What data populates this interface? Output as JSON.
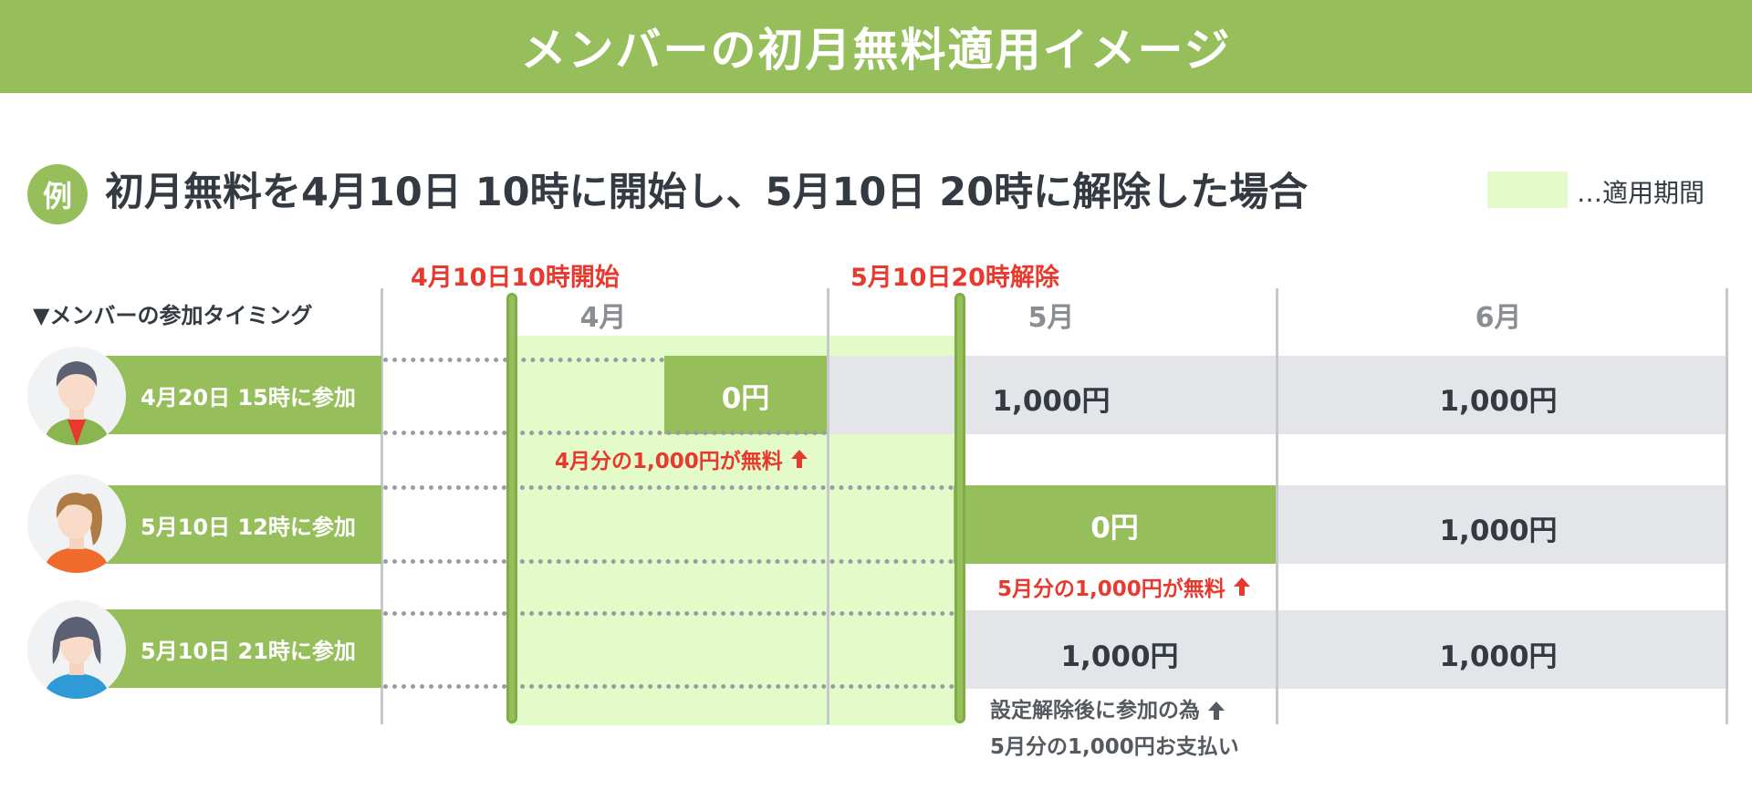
{
  "title": "メンバーの初月無料適用イメージ",
  "example": {
    "badge": "例",
    "heading": "初月無料を4月10日 10時に開始し、5月10日 20時に解除した場合"
  },
  "legend": {
    "label": "…適用期間",
    "color": "#e3fbc8"
  },
  "section_label": "▼メンバーの参加タイミング",
  "months": [
    "4月",
    "5月",
    "6月"
  ],
  "events": {
    "start": "4月10日10時開始",
    "end": "5月10日20時解除"
  },
  "members": [
    {
      "label": "4月20日 15時に参加",
      "prices": [
        "0円",
        "1,000円",
        "1,000円"
      ],
      "note": "4月分の1,000円が無料"
    },
    {
      "label": "5月10日 12時に参加",
      "prices": [
        "0円",
        "1,000円"
      ],
      "note": "5月分の1,000円が無料"
    },
    {
      "label": "5月10日 21時に参加",
      "prices": [
        "1,000円",
        "1,000円"
      ],
      "note_line1": "設定解除後に参加の為",
      "note_line2": "5月分の1,000円お支払い"
    }
  ],
  "colors": {
    "brand_green": "#96bf5b",
    "period_fill": "#e3fbc8",
    "gray_band": "#e4e5e9",
    "accent_red": "#e8392e",
    "text_dark": "#333a42"
  },
  "icons": {
    "arrow": "arrow-up-icon",
    "avatars": [
      "person-short-hair-icon",
      "person-ponytail-icon",
      "person-bob-hair-icon"
    ]
  }
}
